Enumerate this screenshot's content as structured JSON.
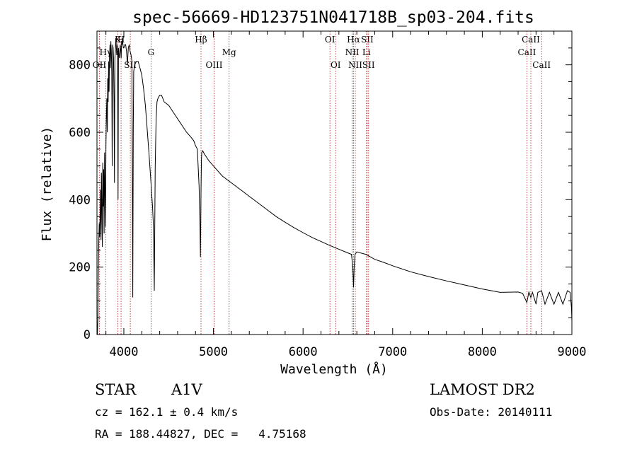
{
  "chart_data": {
    "type": "line",
    "title": "spec-56669-HD123751N041718B_sp03-204.fits",
    "xlabel": "Wavelength (Å)",
    "ylabel": "Flux (relative)",
    "xlim": [
      3700,
      9000
    ],
    "ylim": [
      0,
      900
    ],
    "xticks": [
      4000,
      5000,
      6000,
      7000,
      8000,
      9000
    ],
    "yticks": [
      0,
      200,
      400,
      600,
      800
    ],
    "grid": false,
    "series": [
      {
        "x": [
          3705,
          3710,
          3718,
          3725,
          3730,
          3735,
          3740,
          3745,
          3750,
          3755,
          3760,
          3765,
          3770,
          3775,
          3780,
          3785,
          3790,
          3795,
          3800,
          3805,
          3810,
          3815,
          3820,
          3825,
          3830,
          3835,
          3840,
          3845,
          3850,
          3855,
          3860,
          3865,
          3870,
          3875,
          3880,
          3885,
          3890,
          3895,
          3900,
          3905,
          3910,
          3915,
          3920,
          3925,
          3930,
          3935,
          3940,
          3945,
          3950,
          3955,
          3960,
          3965,
          3970,
          3975,
          3980,
          3985,
          3990,
          3995,
          4000,
          4010,
          4020,
          4030,
          4040,
          4050,
          4060,
          4070,
          4080,
          4090,
          4100,
          4105,
          4110,
          4120,
          4140,
          4160,
          4180,
          4200,
          4220,
          4240,
          4260,
          4280,
          4300,
          4310,
          4320,
          4330,
          4340,
          4350,
          4360,
          4370,
          4380,
          4400,
          4420,
          4450,
          4500,
          4550,
          4600,
          4650,
          4700,
          4750,
          4780,
          4800,
          4820,
          4840,
          4850,
          4855,
          4861,
          4866,
          4870,
          4880,
          4890,
          4900,
          4950,
          5000,
          5100,
          5200,
          5300,
          5400,
          5500,
          5600,
          5700,
          5800,
          5900,
          6000,
          6100,
          6200,
          6300,
          6400,
          6500,
          6540,
          6555,
          6563,
          6570,
          6580,
          6600,
          6700,
          6800,
          6900,
          7000,
          7200,
          7400,
          7600,
          7800,
          8000,
          8200,
          8400,
          8450,
          8498,
          8520,
          8542,
          8560,
          8600,
          8620,
          8662,
          8700,
          8750,
          8800,
          8850,
          8900,
          8950,
          8980,
          8995,
          9000
        ],
        "values": [
          0,
          45,
          250,
          330,
          290,
          340,
          430,
          280,
          480,
          360,
          260,
          510,
          380,
          490,
          300,
          540,
          420,
          320,
          560,
          650,
          700,
          600,
          760,
          690,
          810,
          720,
          820,
          860,
          790,
          870,
          840,
          780,
          500,
          860,
          850,
          820,
          700,
          450,
          820,
          840,
          880,
          860,
          830,
          830,
          860,
          400,
          850,
          830,
          820,
          840,
          860,
          840,
          820,
          870,
          860,
          880,
          860,
          850,
          850,
          860,
          860,
          840,
          800,
          850,
          860,
          840,
          830,
          810,
          110,
          600,
          780,
          800,
          810,
          810,
          790,
          770,
          730,
          680,
          610,
          540,
          460,
          420,
          380,
          320,
          130,
          500,
          640,
          690,
          700,
          710,
          710,
          690,
          680,
          660,
          640,
          620,
          600,
          585,
          575,
          560,
          550,
          440,
          320,
          230,
          420,
          520,
          540,
          545,
          540,
          535,
          515,
          500,
          470,
          450,
          430,
          410,
          390,
          370,
          350,
          333,
          317,
          302,
          288,
          276,
          264,
          253,
          242,
          238,
          200,
          140,
          200,
          238,
          245,
          238,
          223,
          214,
          204,
          186,
          172,
          159,
          147,
          135,
          125,
          126,
          122,
          95,
          126,
          110,
          125,
          90,
          125,
          130,
          90,
          125,
          90,
          125,
          90,
          130,
          125,
          80,
          40
        ]
      }
    ],
    "lines": [
      {
        "label": "OII",
        "wave": 3727,
        "row": 3
      },
      {
        "label": "Hγ",
        "wave": 3797,
        "row": 1
      },
      {
        "label": "K",
        "wave": 3934,
        "row": 0
      },
      {
        "label": "H",
        "wave": 3969,
        "row": 0
      },
      {
        "label": "SII",
        "wave": 4072,
        "row": 3
      },
      {
        "label": "G",
        "wave": 4304,
        "row": 1
      },
      {
        "label": "Hβ",
        "wave": 4861,
        "row": 0
      },
      {
        "label": "OIII",
        "wave": 5007,
        "row": 3
      },
      {
        "label": "Mg",
        "wave": 5175,
        "row": 1
      },
      {
        "label": "OI",
        "wave": 6300,
        "row": 0
      },
      {
        "label": "OI",
        "wave": 6364,
        "row": 3
      },
      {
        "label": "NII",
        "wave": 6548,
        "row": 2
      },
      {
        "label": "Hα",
        "wave": 6563,
        "row": 0
      },
      {
        "label": "NII",
        "wave": 6583,
        "row": 3
      },
      {
        "label": "Li",
        "wave": 6708,
        "row": 2
      },
      {
        "label": "SII",
        "wave": 6716,
        "row": 0
      },
      {
        "label": "SII",
        "wave": 6731,
        "row": 3
      },
      {
        "label": "CaII",
        "wave": 8498,
        "row": 2
      },
      {
        "label": "CaII",
        "wave": 8542,
        "row": 0
      },
      {
        "label": "CaII",
        "wave": 8662,
        "row": 3
      }
    ]
  },
  "info": {
    "class": "STAR",
    "subclass": "A1V",
    "survey": "LAMOST DR2",
    "cz": "cz = 162.1 ± 0.4 km/s",
    "obs_date": "Obs-Date: 20140111",
    "coords": "RA = 188.44827, DEC =   4.75168"
  }
}
